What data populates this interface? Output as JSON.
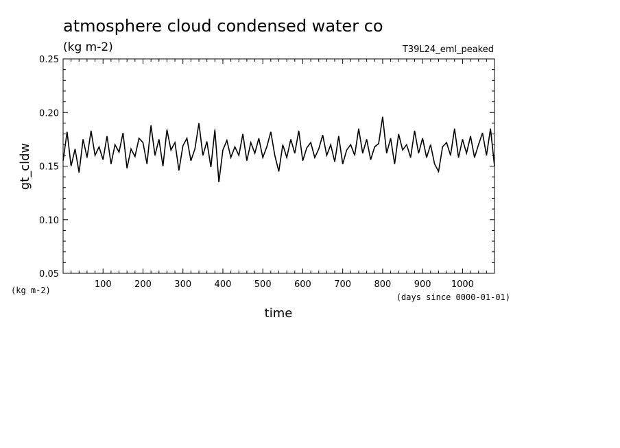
{
  "chart_data": {
    "type": "line",
    "title": "atmosphere cloud condensed water co",
    "units": "(kg m-2)",
    "run_label": "T39L24_eml_peaked",
    "ylabel": "gt_cldw",
    "xlabel": "time",
    "x_units": "(days since 0000-01-01)",
    "y_units_corner": "(kg m-2)",
    "xlim": [
      0,
      1080
    ],
    "ylim": [
      0.05,
      0.25
    ],
    "x_ticks": [
      "100",
      "200",
      "300",
      "400",
      "500",
      "600",
      "700",
      "800",
      "900",
      "1000"
    ],
    "y_ticks": [
      "0.05",
      "0.10",
      "0.15",
      "0.20",
      "0.25"
    ],
    "grid": false,
    "line_color": "#000000",
    "series": [
      {
        "x": [
          0,
          10,
          20,
          30,
          40,
          50,
          60,
          70,
          80,
          90,
          100,
          110,
          120,
          130,
          140,
          150,
          160,
          170,
          180,
          190,
          200,
          210,
          220,
          230,
          240,
          250,
          260,
          270,
          280,
          290,
          300,
          310,
          320,
          330,
          340,
          350,
          360,
          370,
          380,
          390,
          400,
          410,
          420,
          430,
          440,
          450,
          460,
          470,
          480,
          490,
          500,
          510,
          520,
          530,
          540,
          550,
          560,
          570,
          580,
          590,
          600,
          610,
          620,
          630,
          640,
          650,
          660,
          670,
          680,
          690,
          700,
          710,
          720,
          730,
          740,
          750,
          760,
          770,
          780,
          790,
          800,
          810,
          820,
          830,
          840,
          850,
          860,
          870,
          880,
          890,
          900,
          910,
          920,
          930,
          940,
          950,
          960,
          970,
          980,
          990,
          1000,
          1010,
          1020,
          1030,
          1040,
          1050,
          1060,
          1070,
          1080
        ],
        "values": [
          0.155,
          0.182,
          0.15,
          0.166,
          0.144,
          0.175,
          0.158,
          0.183,
          0.16,
          0.168,
          0.156,
          0.178,
          0.152,
          0.17,
          0.163,
          0.181,
          0.148,
          0.166,
          0.159,
          0.176,
          0.172,
          0.152,
          0.188,
          0.16,
          0.175,
          0.15,
          0.184,
          0.165,
          0.172,
          0.146,
          0.169,
          0.176,
          0.155,
          0.166,
          0.19,
          0.16,
          0.173,
          0.149,
          0.184,
          0.135,
          0.165,
          0.174,
          0.158,
          0.168,
          0.16,
          0.18,
          0.155,
          0.172,
          0.162,
          0.176,
          0.158,
          0.168,
          0.182,
          0.16,
          0.145,
          0.17,
          0.158,
          0.175,
          0.162,
          0.183,
          0.155,
          0.167,
          0.172,
          0.158,
          0.166,
          0.179,
          0.16,
          0.17,
          0.154,
          0.178,
          0.152,
          0.165,
          0.17,
          0.16,
          0.185,
          0.162,
          0.175,
          0.156,
          0.168,
          0.171,
          0.196,
          0.162,
          0.176,
          0.152,
          0.18,
          0.165,
          0.17,
          0.158,
          0.183,
          0.162,
          0.176,
          0.158,
          0.17,
          0.152,
          0.145,
          0.168,
          0.172,
          0.16,
          0.185,
          0.158,
          0.175,
          0.162,
          0.178,
          0.158,
          0.17,
          0.181,
          0.16,
          0.185,
          0.15
        ]
      }
    ]
  }
}
